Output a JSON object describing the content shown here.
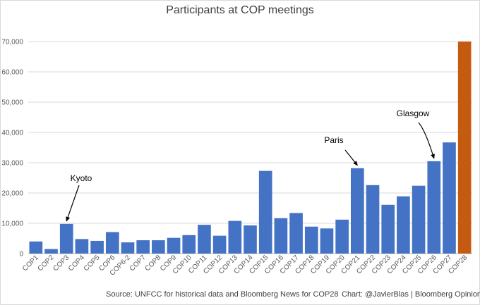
{
  "chart_data": {
    "type": "bar",
    "title": "Participants at COP meetings",
    "xlabel": "",
    "ylabel": "",
    "ylim": [
      0,
      70000
    ],
    "yticks": [
      0,
      10000,
      20000,
      30000,
      40000,
      50000,
      60000,
      70000
    ],
    "ytick_labels": [
      "0",
      "10,000",
      "20,000",
      "30,000",
      "40,000",
      "50,000",
      "60,000",
      "70,000"
    ],
    "grid": true,
    "categories": [
      "COP1",
      "COP2",
      "COP3",
      "COP4",
      "COP5",
      "COP6",
      "COP6-2",
      "COP7",
      "COP8",
      "COP9",
      "COP10",
      "COP11",
      "COP12",
      "COP13",
      "COP14",
      "COP15",
      "COP16",
      "COP17",
      "COP18",
      "COP19",
      "COP20",
      "COP21",
      "COP22",
      "COP23",
      "COP24",
      "COP25",
      "COP26",
      "COP27",
      "COP28"
    ],
    "values": [
      4000,
      1500,
      9800,
      4800,
      4200,
      7100,
      3700,
      4400,
      4400,
      5200,
      6100,
      9500,
      5900,
      10800,
      9300,
      27300,
      11700,
      13400,
      8900,
      8300,
      11200,
      28200,
      22600,
      16100,
      18900,
      22400,
      30500,
      36700,
      70000
    ],
    "colors": {
      "default": "#4472C4",
      "highlight": "#C55A11",
      "highlight_category": "COP28"
    },
    "annotations": [
      {
        "text": "Kyoto",
        "category": "COP3"
      },
      {
        "text": "Paris",
        "category": "COP21"
      },
      {
        "text": "Glasgow",
        "category": "COP26"
      }
    ]
  },
  "footer": {
    "source": "Source: UNFCC for historical data and Bloomberg News for COP28",
    "credit": "Chart: @JavierBlas | Bloomberg Opinion"
  }
}
